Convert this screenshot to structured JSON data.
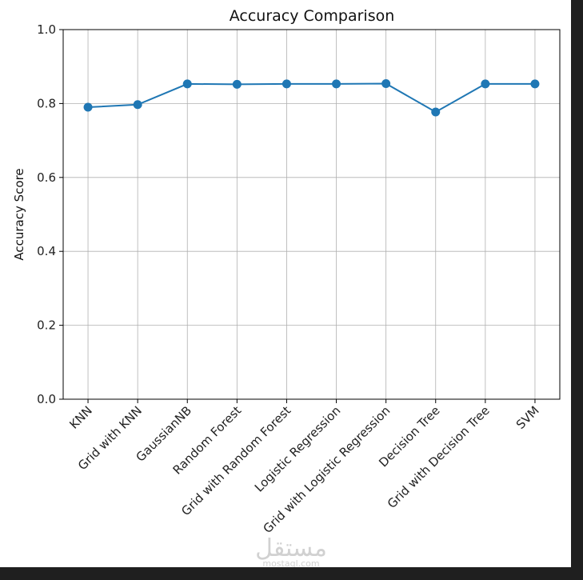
{
  "chart_data": {
    "type": "line",
    "title": "Accuracy Comparison",
    "xlabel": "",
    "ylabel": "Accuracy Score",
    "categories": [
      "KNN",
      "Grid with KNN",
      "GaussianNB",
      "Random Forest",
      "Grid with Random Forest",
      "Logistic Regression",
      "Grid with Logistic Regression",
      "Decision Tree",
      "Grid with Decision Tree",
      "SVM"
    ],
    "series": [
      {
        "values": [
          0.79,
          0.797,
          0.853,
          0.852,
          0.853,
          0.853,
          0.854,
          0.777,
          0.853,
          0.853
        ],
        "color": "#1f77b4",
        "marker": "circle"
      }
    ],
    "ylim": [
      0.0,
      1.0
    ],
    "yticks": [
      "0.0",
      "0.2",
      "0.4",
      "0.6",
      "0.8",
      "1.0"
    ],
    "grid": true,
    "legend": "none",
    "xtick_rotation": 45
  },
  "watermark": {
    "text": "مستقل",
    "subtext": "mostaql.com"
  }
}
